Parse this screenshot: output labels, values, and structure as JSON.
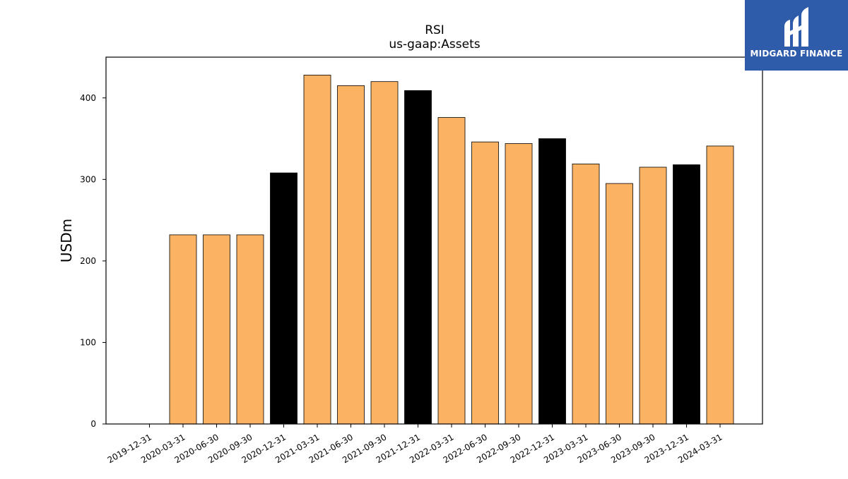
{
  "header": {
    "company": "RSI",
    "metric": "us-gaap:Assets"
  },
  "logo": {
    "text": "MIDGARD FINANCE",
    "background": "#2f5bab"
  },
  "colors": {
    "quarterly_bar": "#fbb363",
    "annual_bar": "#000000",
    "bar_edge": "#000000"
  },
  "chart_data": {
    "type": "bar",
    "title": "RSI",
    "subtitle": "us-gaap:Assets",
    "xlabel": "",
    "ylabel": "USDm",
    "ylim": [
      0,
      450
    ],
    "yticks": [
      0,
      100,
      200,
      300,
      400
    ],
    "grid": false,
    "categories": [
      "2019-12-31",
      "2020-03-31",
      "2020-06-30",
      "2020-09-30",
      "2020-12-31",
      "2021-03-31",
      "2021-06-30",
      "2021-09-30",
      "2021-12-31",
      "2022-03-31",
      "2022-06-30",
      "2022-09-30",
      "2022-12-31",
      "2023-03-31",
      "2023-06-30",
      "2023-09-30",
      "2023-12-31",
      "2024-03-31"
    ],
    "values": [
      null,
      232,
      232,
      232,
      308,
      428,
      415,
      420,
      409,
      376,
      346,
      344,
      350,
      319,
      295,
      315,
      318,
      341
    ],
    "annual": [
      true,
      false,
      false,
      false,
      true,
      false,
      false,
      false,
      true,
      false,
      false,
      false,
      true,
      false,
      false,
      false,
      true,
      false
    ]
  }
}
